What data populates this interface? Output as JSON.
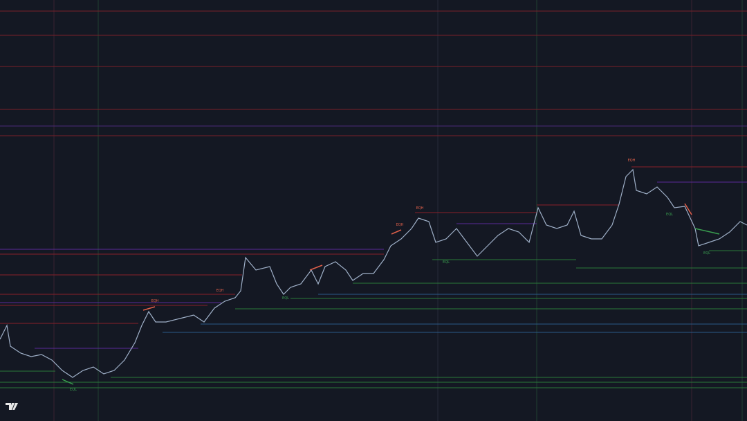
{
  "swing_labels": [
    "EQH",
    "EQH",
    "EQH",
    "EQH",
    "EQH",
    "EQL",
    "EQL",
    "EQL",
    "EQL",
    "EQL"
  ]
}
